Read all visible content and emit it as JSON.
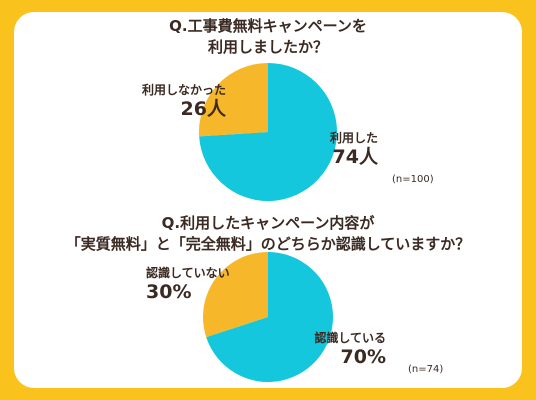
{
  "colors": {
    "background": "#f9c21d",
    "card": "#ffffff",
    "slice_cyan": "#14c7dc",
    "slice_yellow": "#f6b82a",
    "text": "#3a2a22"
  },
  "chart_data": [
    {
      "type": "pie",
      "title_lines": [
        "Q.工事費無料キャンペーンを",
        "利用しましたか？"
      ],
      "slices": [
        {
          "label": "利用した",
          "value": 74,
          "display": "74人",
          "color": "#14c7dc"
        },
        {
          "label": "利用しなかった",
          "value": 26,
          "display": "26人",
          "color": "#f6b82a"
        }
      ],
      "sample_note": "(n=100)"
    },
    {
      "type": "pie",
      "title_lines": [
        "Q.利用したキャンペーン内容が",
        "「実質無料」と「完全無料」のどちらか認識していますか？"
      ],
      "slices": [
        {
          "label": "認識している",
          "value": 70,
          "display": "70%",
          "color": "#14c7dc"
        },
        {
          "label": "認識していない",
          "value": 30,
          "display": "30%",
          "color": "#f6b82a"
        }
      ],
      "sample_note": "(n=74)"
    }
  ]
}
